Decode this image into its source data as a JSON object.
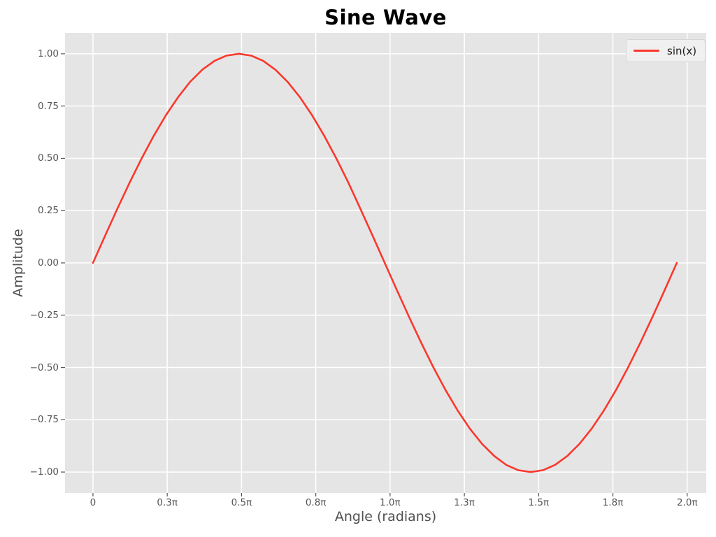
{
  "title": "Sine Wave",
  "xlabel": "Angle (radians)",
  "ylabel": "Amplitude",
  "legend": {
    "entries": [
      {
        "label": "sin(x)",
        "color": "#fa382d"
      }
    ]
  },
  "colors": {
    "figure_bg": "#ffffff",
    "axes_bg": "#e5e5e5",
    "grid": "#ffffff",
    "tick_mark": "#555555",
    "tick_text": "#555555",
    "label_text": "#4f4f4f",
    "title_text": "#000000",
    "line": "#fa382d",
    "legend_bg": "#f0f0f0",
    "legend_border": "#d5d5d5",
    "legend_text": "#1a1a1a"
  },
  "chart_data": {
    "type": "line",
    "title": "Sine Wave",
    "xlabel": "Angle (radians)",
    "ylabel": "Amplitude",
    "x_unit": "pi radians",
    "grid": true,
    "legend_position": "upper right",
    "xlim_pi": [
      -0.094,
      2.064
    ],
    "ylim": [
      -1.1,
      1.1
    ],
    "xticks": {
      "positions_pi": [
        0,
        0.25,
        0.5,
        0.75,
        1.0,
        1.25,
        1.5,
        1.75,
        2.0
      ],
      "labels": [
        "0",
        "0.3π",
        "0.5π",
        "0.8π",
        "1.0π",
        "1.3π",
        "1.5π",
        "1.8π",
        "2.0π"
      ]
    },
    "yticks": {
      "positions": [
        1.0,
        0.75,
        0.5,
        0.25,
        0.0,
        -0.25,
        -0.5,
        -0.75,
        -1.0
      ],
      "labels": [
        "1.00",
        "0.75",
        "0.50",
        "0.25",
        "0.00",
        "−0.25",
        "−0.50",
        "−0.75",
        "−1.00"
      ]
    },
    "series": [
      {
        "name": "sin(x)",
        "color": "#fa382d",
        "x_pi": [
          0,
          0.041,
          0.082,
          0.123,
          0.164,
          0.205,
          0.246,
          0.287,
          0.327,
          0.368,
          0.409,
          0.45,
          0.491,
          0.532,
          0.573,
          0.614,
          0.655,
          0.696,
          0.737,
          0.778,
          0.819,
          0.86,
          0.9,
          0.941,
          0.982,
          1.023,
          1.064,
          1.105,
          1.146,
          1.187,
          1.228,
          1.269,
          1.31,
          1.351,
          1.391,
          1.432,
          1.473,
          1.514,
          1.555,
          1.596,
          1.637,
          1.678,
          1.719,
          1.76,
          1.801,
          1.842,
          1.883,
          1.924,
          1.965
        ],
        "y": [
          0.0,
          0.1305,
          0.2588,
          0.3827,
          0.5,
          0.6088,
          0.7071,
          0.7934,
          0.866,
          0.9239,
          0.9659,
          0.9914,
          1.0,
          0.9914,
          0.9659,
          0.9239,
          0.866,
          0.7934,
          0.7071,
          0.6088,
          0.5,
          0.3827,
          0.2588,
          0.1305,
          0.0,
          -0.1305,
          -0.2588,
          -0.3827,
          -0.5,
          -0.6088,
          -0.7071,
          -0.7934,
          -0.866,
          -0.9239,
          -0.9659,
          -0.9914,
          -1.0,
          -0.9914,
          -0.9659,
          -0.9239,
          -0.866,
          -0.7934,
          -0.7071,
          -0.6088,
          -0.5,
          -0.3827,
          -0.2588,
          -0.1305,
          0.0
        ]
      }
    ]
  }
}
